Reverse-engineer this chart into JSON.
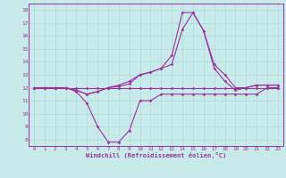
{
  "xlabel": "Windchill (Refroidissement éolien,°C)",
  "xlim": [
    -0.5,
    23.5
  ],
  "ylim": [
    7.5,
    18.5
  ],
  "yticks": [
    8,
    9,
    10,
    11,
    12,
    13,
    14,
    15,
    16,
    17,
    18
  ],
  "xticks": [
    0,
    1,
    2,
    3,
    4,
    5,
    6,
    7,
    8,
    9,
    10,
    11,
    12,
    13,
    14,
    15,
    16,
    17,
    18,
    19,
    20,
    21,
    22,
    23
  ],
  "bg_color": "#c8eaea",
  "grid_color": "#b0d8d8",
  "line_color": "#993399",
  "series1_x": [
    0,
    1,
    2,
    3,
    4,
    5,
    6,
    7,
    8,
    9,
    10,
    11,
    12,
    13,
    14,
    15,
    16,
    17,
    18,
    19,
    20,
    21,
    22,
    23
  ],
  "series1_y": [
    12.0,
    12.0,
    12.0,
    12.0,
    11.7,
    10.8,
    9.0,
    7.8,
    7.8,
    8.7,
    11.0,
    11.0,
    11.5,
    11.5,
    11.5,
    11.5,
    11.5,
    11.5,
    11.5,
    11.5,
    11.5,
    11.5,
    12.0,
    12.0
  ],
  "series2_x": [
    0,
    1,
    2,
    3,
    4,
    5,
    6,
    7,
    8,
    9,
    10,
    11,
    12,
    13,
    14,
    15,
    16,
    17,
    18,
    19,
    20,
    21,
    22,
    23
  ],
  "series2_y": [
    12.0,
    12.0,
    12.0,
    12.0,
    12.0,
    12.0,
    12.0,
    12.0,
    12.0,
    12.0,
    12.0,
    12.0,
    12.0,
    12.0,
    12.0,
    12.0,
    12.0,
    12.0,
    12.0,
    12.0,
    12.0,
    12.0,
    12.0,
    12.0
  ],
  "series3_x": [
    0,
    1,
    2,
    3,
    4,
    5,
    6,
    7,
    8,
    9,
    10,
    11,
    12,
    13,
    14,
    15,
    16,
    17,
    18,
    19,
    20,
    21,
    22,
    23
  ],
  "series3_y": [
    12.0,
    12.0,
    12.0,
    12.0,
    11.8,
    11.5,
    11.7,
    12.0,
    12.2,
    12.5,
    13.0,
    13.2,
    13.5,
    13.8,
    16.5,
    17.8,
    16.4,
    13.5,
    12.5,
    11.8,
    12.0,
    12.2,
    12.2,
    12.2
  ],
  "series4_x": [
    0,
    1,
    2,
    3,
    4,
    5,
    6,
    7,
    8,
    9,
    10,
    11,
    12,
    13,
    14,
    15,
    16,
    17,
    18,
    19,
    20,
    21,
    22,
    23
  ],
  "series4_y": [
    12.0,
    12.0,
    12.0,
    12.0,
    11.8,
    11.5,
    11.7,
    12.0,
    12.1,
    12.3,
    13.0,
    13.2,
    13.5,
    14.5,
    17.8,
    17.8,
    16.4,
    13.8,
    13.0,
    12.0,
    12.0,
    12.2,
    12.2,
    12.2
  ]
}
